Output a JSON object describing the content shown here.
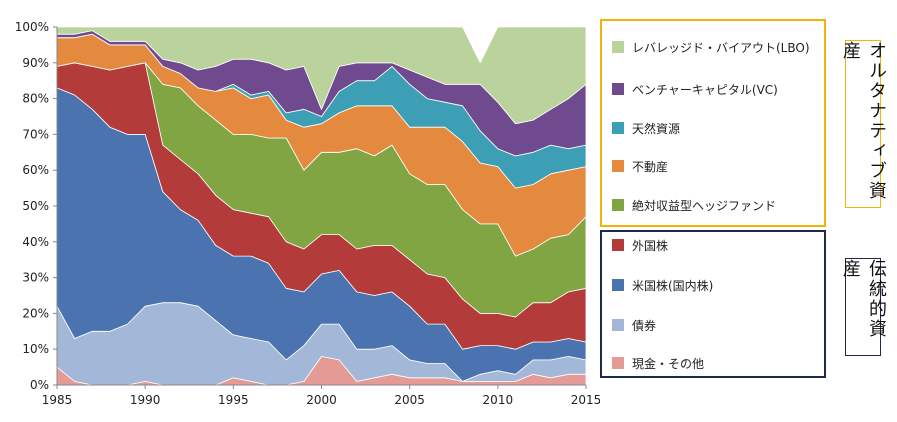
{
  "chart_data": {
    "type": "area",
    "stacked": true,
    "x": [
      1985,
      1986,
      1987,
      1988,
      1989,
      1990,
      1991,
      1992,
      1993,
      1994,
      1995,
      1996,
      1997,
      1998,
      1999,
      2000,
      2001,
      2002,
      2003,
      2004,
      2005,
      2006,
      2007,
      2008,
      2009,
      2010,
      2011,
      2012,
      2013,
      2014,
      2015
    ],
    "xticks": [
      "1985",
      "1990",
      "1995",
      "2000",
      "2005",
      "2010",
      "2015"
    ],
    "yticks": [
      "0%",
      "10%",
      "20%",
      "30%",
      "40%",
      "50%",
      "60%",
      "70%",
      "80%",
      "90%",
      "100%"
    ],
    "ylim": [
      0,
      100
    ],
    "series": [
      {
        "name": "現金・その他",
        "color": "#e49a95",
        "values": [
          5,
          1,
          0,
          0,
          0,
          1,
          0,
          0,
          0,
          0,
          2,
          1,
          0,
          0,
          1,
          8,
          7,
          1,
          2,
          3,
          2,
          2,
          2,
          1,
          1,
          1,
          1,
          3,
          2,
          3,
          3
        ]
      },
      {
        "name": "債券",
        "color": "#a3b7d8",
        "values": [
          17,
          12,
          15,
          15,
          17,
          21,
          23,
          23,
          22,
          18,
          12,
          12,
          12,
          7,
          10,
          9,
          10,
          9,
          8,
          8,
          5,
          4,
          4,
          0,
          2,
          3,
          2,
          4,
          5,
          5,
          4
        ]
      },
      {
        "name": "米国株(国内株)",
        "color": "#4a73b0",
        "values": [
          61,
          68,
          62,
          57,
          53,
          48,
          31,
          26,
          24,
          21,
          22,
          23,
          22,
          20,
          15,
          14,
          15,
          16,
          15,
          15,
          15,
          11,
          11,
          9,
          8,
          7,
          7,
          5,
          5,
          5,
          5
        ]
      },
      {
        "name": "外国株",
        "color": "#b33b3a",
        "values": [
          6,
          9,
          12,
          16,
          19,
          20,
          13,
          14,
          13,
          14,
          13,
          12,
          13,
          13,
          12,
          11,
          10,
          12,
          14,
          13,
          13,
          14,
          13,
          14,
          9,
          9,
          9,
          11,
          11,
          13,
          15
        ]
      },
      {
        "name": "絶対収益型ヘッジファンド",
        "color": "#82a544",
        "values": [
          0,
          0,
          0,
          0,
          0,
          0,
          17,
          20,
          19,
          21,
          21,
          22,
          22,
          29,
          22,
          23,
          23,
          28,
          25,
          28,
          24,
          25,
          26,
          25,
          25,
          25,
          17,
          15,
          18,
          16,
          20
        ]
      },
      {
        "name": "不動産",
        "color": "#e38a3e",
        "values": [
          8,
          7,
          9,
          7,
          6,
          5,
          5,
          4,
          5,
          8,
          13,
          10,
          12,
          5,
          12,
          8,
          11,
          12,
          14,
          11,
          13,
          16,
          16,
          19,
          17,
          16,
          19,
          18,
          18,
          18,
          14
        ]
      },
      {
        "name": "天然資源",
        "color": "#3d9fb5",
        "values": [
          0,
          0,
          0,
          0,
          0,
          0,
          0,
          0,
          0,
          0,
          1,
          1,
          1,
          2,
          5,
          2,
          6,
          7,
          7,
          11,
          12,
          8,
          7,
          10,
          9,
          5,
          9,
          9,
          8,
          6,
          6
        ]
      },
      {
        "name": "ベンチャーキャピタル(VC)",
        "color": "#6f4a8e",
        "values": [
          1,
          1,
          1,
          1,
          1,
          1,
          2,
          3,
          5,
          7,
          7,
          10,
          8,
          12,
          12,
          2,
          7,
          5,
          5,
          1,
          4,
          6,
          5,
          6,
          13,
          13,
          9,
          9,
          10,
          14,
          17
        ]
      },
      {
        "name": "レバレッジド・バイアウト(LBO)",
        "color": "#bad29c",
        "values": [
          2,
          2,
          1,
          4,
          4,
          4,
          9,
          10,
          12,
          11,
          9,
          9,
          10,
          12,
          11,
          23,
          11,
          10,
          10,
          10,
          12,
          14,
          16,
          16,
          6,
          21,
          27,
          26,
          23,
          20,
          16
        ]
      }
    ]
  },
  "legend": {
    "alternative": [
      {
        "label": "レバレッジド・バイアウト(LBO)",
        "color": "#bad29c"
      },
      {
        "label": "ベンチャーキャピタル(VC)",
        "color": "#6f4a8e"
      },
      {
        "label": "天然資源",
        "color": "#3d9fb5"
      },
      {
        "label": "不動産",
        "color": "#e38a3e"
      },
      {
        "label": "絶対収益型ヘッジファンド",
        "color": "#82a544"
      }
    ],
    "traditional": [
      {
        "label": "外国株",
        "color": "#b33b3a"
      },
      {
        "label": "米国株(国内株)",
        "color": "#4a73b0"
      },
      {
        "label": "債券",
        "color": "#a3b7d8"
      },
      {
        "label": "現金・その他",
        "color": "#e49a95"
      }
    ]
  },
  "groups": {
    "alternative_label": "オルタナティブ資産",
    "traditional_label": "伝統的資産",
    "alternative_color": "#f2b40b",
    "traditional_color": "#1e2a4a"
  }
}
